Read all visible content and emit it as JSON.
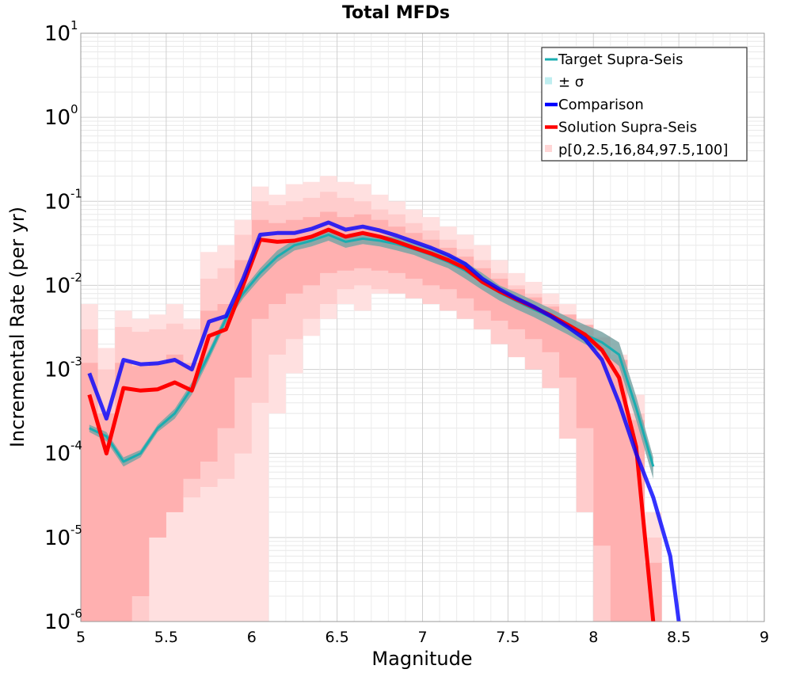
{
  "chart_data": {
    "type": "line",
    "title": "Total MFDs",
    "xlabel": "Magnitude",
    "ylabel": "Incremental Rate (per yr)",
    "xlim": [
      5,
      9
    ],
    "ylim": [
      1e-06,
      10
    ],
    "yscale": "log",
    "grid": true,
    "legend_position": "top-right",
    "x_ticks": [
      "5",
      "5.5",
      "6",
      "6.5",
      "7",
      "7.5",
      "8",
      "8.5",
      "9"
    ],
    "y_ticks": [
      {
        "base": "10",
        "exp": "1"
      },
      {
        "base": "10",
        "exp": "0"
      },
      {
        "base": "10",
        "exp": "-1"
      },
      {
        "base": "10",
        "exp": "-2"
      },
      {
        "base": "10",
        "exp": "-3"
      },
      {
        "base": "10",
        "exp": "-4"
      },
      {
        "base": "10",
        "exp": "-5"
      },
      {
        "base": "10",
        "exp": "-6"
      }
    ],
    "legend": [
      {
        "label": "Target Supra-Seis",
        "color": "#1aadb0",
        "kind": "line"
      },
      {
        "label": "± σ",
        "color": "#bfeef0",
        "kind": "box"
      },
      {
        "label": "Comparison",
        "color": "#0000ff",
        "kind": "line"
      },
      {
        "label": "Solution Supra-Seis",
        "color": "#ff0000",
        "kind": "line"
      },
      {
        "label": "p[0,2.5,16,84,97.5,100]",
        "color": "#ffd6d6",
        "kind": "box"
      }
    ],
    "x": [
      5.05,
      5.15,
      5.25,
      5.35,
      5.45,
      5.55,
      5.65,
      5.75,
      5.85,
      5.95,
      6.05,
      6.15,
      6.25,
      6.35,
      6.45,
      6.55,
      6.65,
      6.75,
      6.85,
      6.95,
      7.05,
      7.15,
      7.25,
      7.35,
      7.45,
      7.55,
      7.65,
      7.75,
      7.85,
      7.95,
      8.05,
      8.15,
      8.25,
      8.35
    ],
    "series": [
      {
        "name": "Solution Supra-Seis",
        "color": "#ff0000",
        "values": [
          0.0005,
          0.0001,
          0.0006,
          0.00056,
          0.00058,
          0.0007,
          0.00056,
          0.0025,
          0.003,
          0.01,
          0.035,
          0.033,
          0.034,
          0.038,
          0.046,
          0.038,
          0.042,
          0.038,
          0.033,
          0.028,
          0.024,
          0.02,
          0.016,
          0.011,
          0.0085,
          0.0068,
          0.0055,
          0.0044,
          0.0034,
          0.0026,
          0.0017,
          0.0008,
          0.00012,
          1e-06
        ]
      },
      {
        "name": "Comparison",
        "color": "#0000ff",
        "x": [
          5.05,
          5.15,
          5.25,
          5.35,
          5.45,
          5.55,
          5.65,
          5.75,
          5.85,
          5.95,
          6.05,
          6.15,
          6.25,
          6.35,
          6.45,
          6.55,
          6.65,
          6.75,
          6.85,
          6.95,
          7.05,
          7.15,
          7.25,
          7.35,
          7.45,
          7.55,
          7.65,
          7.75,
          7.85,
          7.95,
          8.05,
          8.15,
          8.25,
          8.35,
          8.45,
          8.5
        ],
        "values": [
          0.0009,
          0.00026,
          0.0013,
          0.00115,
          0.00118,
          0.0013,
          0.001,
          0.0037,
          0.0043,
          0.012,
          0.04,
          0.042,
          0.042,
          0.047,
          0.056,
          0.046,
          0.05,
          0.045,
          0.039,
          0.033,
          0.028,
          0.023,
          0.018,
          0.012,
          0.009,
          0.007,
          0.0056,
          0.0043,
          0.0032,
          0.0023,
          0.0013,
          0.0004,
          0.0001,
          3e-05,
          6e-06,
          1e-06
        ]
      },
      {
        "name": "Target Supra-Seis",
        "color": "#1aadb0",
        "values": [
          0.0002,
          0.00016,
          8e-05,
          0.0001,
          0.0002,
          0.0003,
          0.0006,
          0.0015,
          0.004,
          0.008,
          0.014,
          0.022,
          0.03,
          0.034,
          0.04,
          0.033,
          0.036,
          0.034,
          0.031,
          0.027,
          0.023,
          0.019,
          0.015,
          0.011,
          0.0082,
          0.0065,
          0.0052,
          0.0042,
          0.0033,
          0.0026,
          0.0021,
          0.0015,
          0.00035,
          7e-05
        ]
      }
    ],
    "bands": [
      {
        "kind": "pct-outer",
        "color": "#ffe0e0",
        "lower": [
          1e-06,
          1e-06,
          1e-06,
          1e-06,
          1e-06,
          1e-06,
          1e-06,
          1e-06,
          1e-06,
          1e-06,
          1e-06,
          0.0003,
          0.0009,
          0.0025,
          0.004,
          0.006,
          0.005,
          0.008,
          0.009,
          0.008,
          0.007,
          0.006,
          0.005,
          0.004,
          0.0025,
          0.002,
          0.0015,
          0.0009,
          0.0003,
          4e-05,
          1e-06,
          1e-06,
          1e-06,
          1e-06
        ],
        "upper": [
          0.006,
          0.0018,
          0.005,
          0.004,
          0.0045,
          0.006,
          0.004,
          0.025,
          0.03,
          0.06,
          0.15,
          0.12,
          0.16,
          0.17,
          0.2,
          0.17,
          0.16,
          0.12,
          0.1,
          0.08,
          0.065,
          0.05,
          0.04,
          0.03,
          0.02,
          0.014,
          0.011,
          0.008,
          0.006,
          0.004,
          0.0025,
          0.0015,
          0.0005,
          2e-05
        ]
      },
      {
        "kind": "pct-mid",
        "color": "#ffcccc",
        "lower": [
          1e-06,
          1e-06,
          1e-06,
          1e-06,
          1e-05,
          2e-05,
          3e-05,
          4e-05,
          5e-05,
          0.0001,
          0.0004,
          0.0015,
          0.0023,
          0.004,
          0.006,
          0.009,
          0.01,
          0.009,
          0.008,
          0.007,
          0.006,
          0.005,
          0.004,
          0.003,
          0.002,
          0.0014,
          0.001,
          0.0006,
          0.00015,
          2e-05,
          1e-06,
          1e-06,
          1e-06,
          1e-06
        ],
        "upper": [
          0.003,
          0.001,
          0.0032,
          0.0028,
          0.003,
          0.0035,
          0.003,
          0.012,
          0.016,
          0.04,
          0.1,
          0.09,
          0.1,
          0.11,
          0.13,
          0.11,
          0.1,
          0.08,
          0.07,
          0.055,
          0.045,
          0.035,
          0.027,
          0.02,
          0.014,
          0.01,
          0.008,
          0.006,
          0.0045,
          0.003,
          0.002,
          0.0011,
          0.0003,
          1e-05
        ]
      },
      {
        "kind": "pct-inner",
        "color": "#ffb0b0",
        "lower": [
          1e-06,
          1e-06,
          1e-06,
          2e-06,
          1e-05,
          2e-05,
          5e-05,
          8e-05,
          0.0002,
          0.0008,
          0.004,
          0.006,
          0.008,
          0.01,
          0.014,
          0.015,
          0.016,
          0.015,
          0.014,
          0.012,
          0.01,
          0.009,
          0.007,
          0.005,
          0.0038,
          0.003,
          0.0023,
          0.0016,
          0.0008,
          0.0002,
          8e-06,
          1e-06,
          1e-06,
          1e-06
        ],
        "upper": [
          0.0012,
          0.0003,
          0.0012,
          0.0011,
          0.0012,
          0.0015,
          0.0012,
          0.005,
          0.006,
          0.02,
          0.06,
          0.055,
          0.06,
          0.065,
          0.075,
          0.065,
          0.07,
          0.06,
          0.05,
          0.042,
          0.035,
          0.028,
          0.022,
          0.016,
          0.012,
          0.009,
          0.0072,
          0.0056,
          0.0045,
          0.0034,
          0.0024,
          0.0013,
          0.00025,
          5e-06
        ]
      },
      {
        "kind": "sigma",
        "color": "#7aa5a5",
        "lower": [
          0.00018,
          0.00014,
          7e-05,
          9e-05,
          0.00018,
          0.00026,
          0.0005,
          0.0013,
          0.0035,
          0.007,
          0.012,
          0.019,
          0.026,
          0.029,
          0.034,
          0.028,
          0.031,
          0.029,
          0.026,
          0.023,
          0.019,
          0.016,
          0.012,
          0.0088,
          0.0066,
          0.0052,
          0.0042,
          0.0033,
          0.0026,
          0.002,
          0.0016,
          0.0011,
          0.00025,
          5e-05
        ],
        "upper": [
          0.00022,
          0.00018,
          9e-05,
          0.00011,
          0.00022,
          0.00034,
          0.0007,
          0.0017,
          0.0046,
          0.009,
          0.016,
          0.026,
          0.035,
          0.04,
          0.047,
          0.039,
          0.042,
          0.04,
          0.037,
          0.032,
          0.028,
          0.023,
          0.019,
          0.014,
          0.01,
          0.0082,
          0.0066,
          0.0053,
          0.0042,
          0.0034,
          0.0028,
          0.0021,
          0.00048,
          9e-05
        ]
      }
    ]
  }
}
